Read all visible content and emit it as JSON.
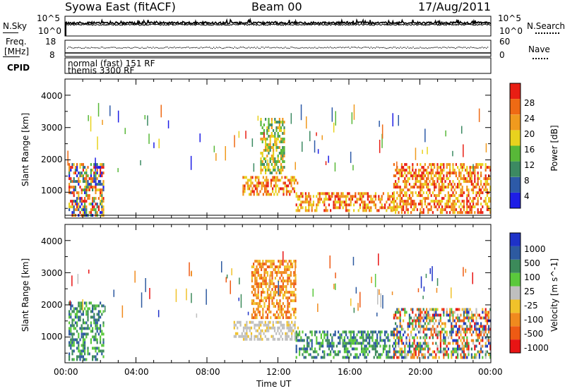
{
  "header": {
    "station": "Syowa East (fitACF)",
    "beam": "Beam 00",
    "date": "17/Aug/2011"
  },
  "noise_panel": {
    "left_label": "N.Sky",
    "right_label": "N.Search",
    "left_ticks": [
      "10^5",
      "10^0"
    ],
    "right_ticks": [
      "10^5",
      "10^0"
    ]
  },
  "freq_panel": {
    "left_label_1": "Freq.",
    "left_label_2": "[MHz]",
    "right_label": "Nave",
    "left_ticks": [
      "18",
      "8"
    ],
    "right_ticks": [
      "60",
      "0"
    ]
  },
  "cpid_panel": {
    "label": "CPID",
    "line1": "normal (fast) 151 RF",
    "line2": "themis 3300 RF"
  },
  "x_axis": {
    "label": "Time UT",
    "ticks": [
      "00:00",
      "04:00",
      "08:00",
      "12:00",
      "16:00",
      "20:00",
      "00:00"
    ]
  },
  "colors": {
    "power": [
      "#1e1ee6",
      "#2d5aa8",
      "#3c8a62",
      "#58b838",
      "#e8d21e",
      "#f09a1e",
      "#ef6a14",
      "#e81e14"
    ],
    "velocity": [
      "#e81414",
      "#ee5a14",
      "#f08a1e",
      "#f0c22a",
      "#bfbfbf",
      "#5ac83c",
      "#3c8a5a",
      "#2d5aa0",
      "#1e32c8"
    ]
  },
  "chart_data": [
    {
      "type": "heatmap",
      "panel": "power",
      "ylabel": "Slant Range [km]",
      "xlabel": "Time UT",
      "y_ticks": [
        "1000",
        "2000",
        "3000",
        "4000"
      ],
      "ylim": [
        200,
        4500
      ],
      "xlim_hours": [
        0,
        24
      ],
      "colorbar": {
        "label": "Power [dB]",
        "ticks": [
          "4",
          "8",
          "12",
          "16",
          "20",
          "24",
          "28"
        ],
        "range": [
          0,
          32
        ]
      },
      "regions": [
        {
          "t0": 0.2,
          "t1": 2.2,
          "r0": 300,
          "r1": 1900,
          "level": "mixed"
        },
        {
          "t0": 10.0,
          "t1": 13.1,
          "r0": 900,
          "r1": 1500,
          "level": "high"
        },
        {
          "t0": 11.0,
          "t1": 12.4,
          "r0": 1600,
          "r1": 3300,
          "level": "medium"
        },
        {
          "t0": 13.0,
          "t1": 18.5,
          "r0": 400,
          "r1": 1000,
          "level": "high"
        },
        {
          "t0": 18.5,
          "t1": 24.0,
          "r0": 400,
          "r1": 1900,
          "level": "high"
        }
      ]
    },
    {
      "type": "heatmap",
      "panel": "velocity",
      "ylabel": "Slant Range [km]",
      "xlabel": "Time UT",
      "y_ticks": [
        "1000",
        "2000",
        "3000",
        "4000"
      ],
      "ylim": [
        200,
        4500
      ],
      "xlim_hours": [
        0,
        24
      ],
      "colorbar": {
        "label": "Velocity [m s^-1]",
        "ticks": [
          "-1000",
          "-500",
          "-100",
          "-25",
          "25",
          "100",
          "500",
          "1000"
        ]
      },
      "regions": [
        {
          "t0": 0.2,
          "t1": 2.2,
          "r0": 300,
          "r1": 2100,
          "level": "positive"
        },
        {
          "t0": 9.5,
          "t1": 13.1,
          "r0": 900,
          "r1": 1500,
          "level": "ground"
        },
        {
          "t0": 10.5,
          "t1": 13.0,
          "r0": 1600,
          "r1": 3400,
          "level": "negative"
        },
        {
          "t0": 13.0,
          "t1": 18.5,
          "r0": 400,
          "r1": 1200,
          "level": "positive"
        },
        {
          "t0": 18.5,
          "t1": 24.0,
          "r0": 400,
          "r1": 1900,
          "level": "mixed"
        }
      ]
    }
  ]
}
